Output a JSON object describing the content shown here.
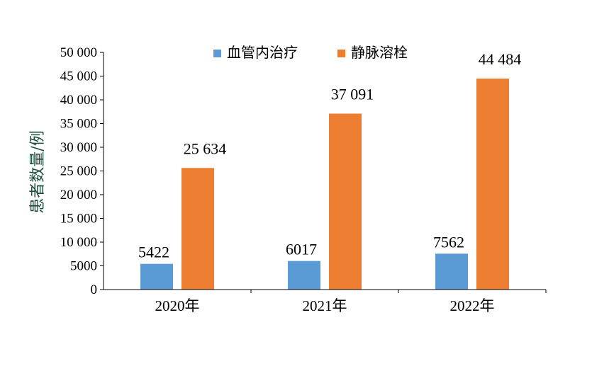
{
  "chart_data": {
    "type": "bar",
    "categories": [
      "2020年",
      "2021年",
      "2022年"
    ],
    "series": [
      {
        "name": "血管内治疗",
        "values": [
          5422,
          6017,
          7562
        ],
        "labels": [
          "5422",
          "6017",
          "7562"
        ],
        "color": "#5b9bd5"
      },
      {
        "name": "静脉溶栓",
        "values": [
          25634,
          37091,
          44484
        ],
        "labels": [
          "25 634",
          "37 091",
          "44 484"
        ],
        "color": "#ed7d31"
      }
    ],
    "ylabel": "患者数量/例",
    "ylim": [
      0,
      50000
    ],
    "yticks": [
      0,
      5000,
      10000,
      15000,
      20000,
      25000,
      30000,
      35000,
      40000,
      45000,
      50000
    ],
    "ytick_labels": [
      "0",
      "5000",
      "10 000",
      "15 000",
      "20 000",
      "25 000",
      "30 000",
      "35 000",
      "40 000",
      "45 000",
      "50 000"
    ],
    "grid": false,
    "legend_position": "top"
  }
}
